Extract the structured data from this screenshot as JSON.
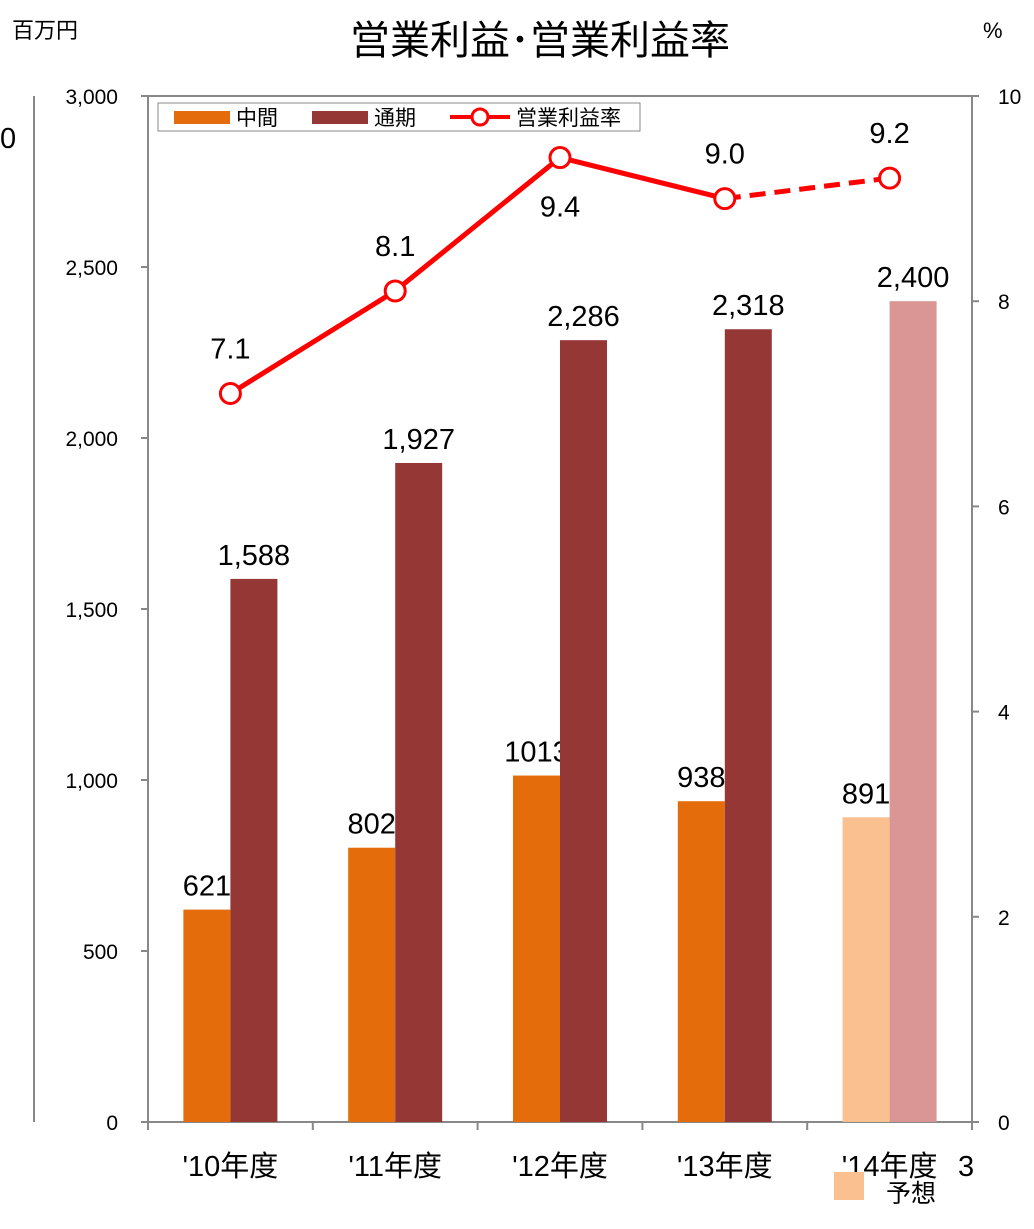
{
  "page": {
    "left_unit": "百万円",
    "right_unit": "%",
    "page_number": "3",
    "clipped_left_text": "0"
  },
  "chart_data": {
    "type": "bar",
    "title": "営業利益･営業利益率",
    "categories": [
      "'10年度",
      "'11年度",
      "'12年度",
      "'13年度",
      "'14年度"
    ],
    "y_left": {
      "range": [
        0,
        3000
      ],
      "ticks": [
        "0",
        "500",
        "1,000",
        "1,500",
        "2,000",
        "2,500",
        "3,000"
      ]
    },
    "y_right": {
      "range": [
        0,
        10
      ],
      "ticks": [
        "0",
        "2",
        "4",
        "6",
        "8",
        "10"
      ]
    },
    "series": [
      {
        "name": "中間",
        "kind": "bar",
        "axis": "left",
        "color": "#E46C0A",
        "values": [
          621,
          802,
          1013,
          938,
          891
        ],
        "labels": [
          "621",
          "802",
          "1013",
          "938",
          "891"
        ]
      },
      {
        "name": "通期",
        "kind": "bar",
        "axis": "left",
        "color": "#953735",
        "values": [
          1588,
          1927,
          2286,
          2318,
          2400
        ],
        "labels": [
          "1,588",
          "1,927",
          "2,286",
          "2,318",
          "2,400"
        ]
      },
      {
        "name": "営業利益率",
        "kind": "line",
        "axis": "right",
        "color": "#FF0000",
        "values": [
          7.1,
          8.1,
          9.4,
          9.0,
          9.2
        ],
        "labels": [
          "7.1",
          "8.1",
          "9.4",
          "9.0",
          "9.2"
        ]
      }
    ],
    "forecast_index": 4,
    "forecast_colors": {
      "中間": "#FAC090",
      "通期": "#D99694"
    },
    "forecast_legend": "予想",
    "grid": false,
    "legend_position": "top-left"
  }
}
